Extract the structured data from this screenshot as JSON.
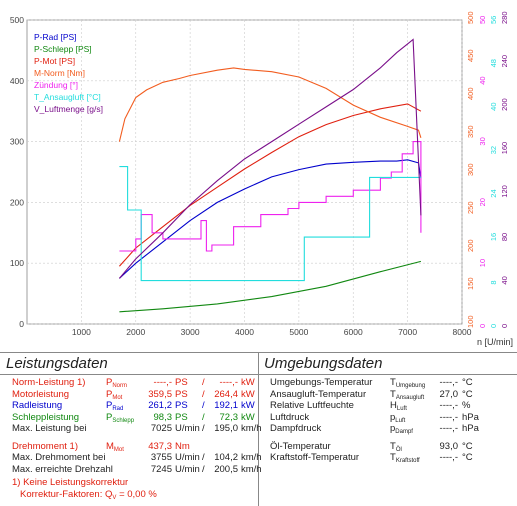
{
  "colors": {
    "p_rad": "#0000cc",
    "p_schlepp": "#118811",
    "p_mot": "#e02010",
    "m_norm": "#f25d20",
    "zuendung": "#ee22ee",
    "t_ansaug": "#22dddd",
    "v_luft": "#7a0f8a",
    "axis": "#555555"
  },
  "chart_data": {
    "type": "line",
    "xlabel": "n [U/min]",
    "x_ticks": [
      "1000",
      "2000",
      "3000",
      "4000",
      "5000",
      "6000",
      "7000",
      "8000"
    ],
    "xlim": [
      0,
      8000
    ],
    "left_axis": {
      "ticks": [
        "0",
        "100",
        "200",
        "300",
        "400",
        "500"
      ],
      "ylim": [
        0,
        500
      ]
    },
    "right_axes": [
      {
        "color": "#f25d20",
        "ticks": [
          "100",
          "150",
          "200",
          "250",
          "300",
          "350",
          "400",
          "450",
          "500"
        ],
        "ylim": [
          100,
          500
        ]
      },
      {
        "color": "#ee22ee",
        "ticks": [
          "0",
          "10",
          "20",
          "30",
          "40",
          "50"
        ],
        "ylim": [
          0,
          50
        ]
      },
      {
        "color": "#22dddd",
        "ticks": [
          "0",
          "8",
          "16",
          "24",
          "32",
          "40",
          "48",
          "56"
        ],
        "ylim": [
          0,
          56
        ]
      },
      {
        "color": "#7a0f8a",
        "ticks": [
          "0",
          "40",
          "80",
          "120",
          "160",
          "200",
          "240",
          "280"
        ],
        "ylim": [
          0,
          280
        ]
      }
    ],
    "legend": [
      {
        "label": "P-Rad [PS]",
        "color": "#0000cc"
      },
      {
        "label": "P-Schlepp [PS]",
        "color": "#118811"
      },
      {
        "label": "P-Mot [PS]",
        "color": "#e02010"
      },
      {
        "label": "M-Norm [Nm]",
        "color": "#f25d20"
      },
      {
        "label": "Zündung [°]",
        "color": "#ee22ee"
      },
      {
        "label": "T_Ansaugluft [°C]",
        "color": "#22dddd"
      },
      {
        "label": "V_Luftmenge [g/s]",
        "color": "#7a0f8a"
      }
    ],
    "series": [
      {
        "name": "P-Rad [PS]",
        "axis": "left",
        "x": [
          1700,
          2000,
          2500,
          3000,
          3500,
          4000,
          4500,
          5000,
          5500,
          6000,
          6500,
          6800,
          7000,
          7200,
          7245
        ],
        "y": [
          75,
          100,
          135,
          170,
          200,
          222,
          242,
          254,
          263,
          266,
          268,
          268,
          270,
          265,
          240
        ]
      },
      {
        "name": "P-Schlepp [PS]",
        "axis": "left",
        "x": [
          1700,
          2500,
          3500,
          4500,
          5500,
          6500,
          7245
        ],
        "y": [
          20,
          25,
          33,
          45,
          62,
          86,
          103
        ]
      },
      {
        "name": "P-Mot [PS]",
        "axis": "left",
        "x": [
          1700,
          2000,
          2500,
          3000,
          3500,
          4000,
          4500,
          5000,
          5500,
          6000,
          6500,
          7000,
          7245
        ],
        "y": [
          95,
          125,
          160,
          195,
          225,
          255,
          282,
          308,
          328,
          343,
          354,
          362,
          350
        ]
      },
      {
        "name": "M-Norm [Nm]",
        "axis": "right0",
        "x": [
          1700,
          1800,
          2000,
          2200,
          2500,
          2800,
          3000,
          3500,
          3800,
          4000,
          4500,
          5000,
          5500,
          6000,
          6500,
          7000,
          7200,
          7245
        ],
        "y": [
          340,
          370,
          398,
          408,
          418,
          423,
          427,
          434,
          437,
          435,
          432,
          425,
          410,
          388,
          372,
          360,
          355,
          345
        ]
      },
      {
        "name": "Zündung [°]",
        "axis": "right1",
        "x": [
          1700,
          2000,
          2100,
          2300,
          2400,
          2500,
          3000,
          3200,
          3300,
          3400,
          3800,
          4000,
          4200,
          4300,
          4800,
          5000,
          5500,
          6000,
          6300,
          6500,
          6700,
          6900,
          7100,
          7245
        ],
        "y": [
          12,
          14,
          18,
          15,
          15,
          14,
          14,
          17,
          12,
          13,
          16,
          16,
          16,
          18,
          19,
          20,
          21,
          22,
          22,
          24,
          25,
          28,
          30,
          15
        ]
      },
      {
        "name": "T_Ansaugluft [°C]",
        "axis": "right2",
        "x": [
          1700,
          1800,
          1850,
          2000,
          2100,
          2500,
          3000,
          3500,
          4000,
          4500,
          5000,
          5100,
          5500,
          6000,
          6300,
          6500,
          6900,
          7100,
          7245
        ],
        "y": [
          29,
          29,
          21,
          21,
          8,
          8,
          8,
          8,
          8,
          8,
          8,
          16,
          16,
          16,
          27,
          27,
          27,
          27,
          27
        ]
      },
      {
        "name": "V_Luftmenge [g/s]",
        "axis": "right3",
        "x": [
          1700,
          2000,
          2500,
          3000,
          3500,
          4000,
          4500,
          5000,
          5500,
          6000,
          6500,
          6800,
          7000,
          7100,
          7245
        ],
        "y": [
          42,
          60,
          84,
          110,
          132,
          152,
          168,
          184,
          200,
          216,
          236,
          250,
          258,
          262,
          100
        ]
      }
    ]
  },
  "left_table": {
    "title": "Leistungsdaten",
    "rows": [
      {
        "label": "Norm-Leistung",
        "mark": "1)",
        "sym": "P",
        "symsub": "Norm",
        "v1": "----,-",
        "u1": "PS",
        "sep": "/",
        "v2": "----,-",
        "u2": "kW",
        "color": "#e02010"
      },
      {
        "label": "Motorleistung",
        "mark": "",
        "sym": "P",
        "symsub": "Mot",
        "v1": "359,5",
        "u1": "PS",
        "sep": "/",
        "v2": "264,4",
        "u2": "kW",
        "color": "#e02010"
      },
      {
        "label": "Radleistung",
        "mark": "",
        "sym": "P",
        "symsub": "Rad",
        "v1": "261,2",
        "u1": "PS",
        "sep": "/",
        "v2": "192,1",
        "u2": "kW",
        "color": "#0000cc"
      },
      {
        "label": "Schleppleistung",
        "mark": "",
        "sym": "P",
        "symsub": "Schlepp",
        "v1": "98,3",
        "u1": "PS",
        "sep": "/",
        "v2": "72,3",
        "u2": "kW",
        "color": "#118811"
      },
      {
        "label": "Max. Leistung bei",
        "mark": "",
        "sym": "",
        "symsub": "",
        "v1": "7025",
        "u1": "U/min",
        "sep": "/",
        "v2": "195,0",
        "u2": "km/h",
        "color": "#222222"
      },
      {
        "label": "Drehmoment",
        "mark": "1)",
        "sym": "M",
        "symsub": "Mot",
        "v1": "437,3",
        "u1": "Nm",
        "sep": "",
        "v2": "",
        "u2": "",
        "color": "#e02010"
      },
      {
        "label": "Max. Drehmoment bei",
        "mark": "",
        "sym": "",
        "symsub": "",
        "v1": "3755",
        "u1": "U/min",
        "sep": "/",
        "v2": "104,2",
        "u2": "km/h",
        "color": "#222222"
      },
      {
        "label": "Max. erreichte Drehzahl",
        "mark": "",
        "sym": "",
        "symsub": "",
        "v1": "7245",
        "u1": "U/min",
        "sep": "/",
        "v2": "200,5",
        "u2": "km/h",
        "color": "#222222"
      }
    ],
    "footnote1": "1) Keine Leistungskorrektur",
    "footnote2": "Korrektur-Faktoren:",
    "footnote2_sym": "Q",
    "footnote2_sub": "V",
    "footnote2_val": "=    0,00 %"
  },
  "right_table": {
    "title": "Umgebungsdaten",
    "rows": [
      {
        "label": "Umgebungs-Temperatur",
        "sym": "T",
        "symsub": "Umgebung",
        "val": "----,-",
        "unit": "°C"
      },
      {
        "label": "Ansaugluft-Temperatur",
        "sym": "T",
        "symsub": "Ansaugluft",
        "val": "27,0",
        "unit": "°C"
      },
      {
        "label": "Relative Luftfeuchte",
        "sym": "H",
        "symsub": "Luft",
        "val": "----,-",
        "unit": "%"
      },
      {
        "label": "Luftdruck",
        "sym": "p",
        "symsub": "Luft",
        "val": "----,-",
        "unit": "hPa"
      },
      {
        "label": "Dampfdruck",
        "sym": "p",
        "symsub": "Dampf",
        "val": "----,-",
        "unit": "hPa"
      },
      {
        "label": "Öl-Temperatur",
        "sym": "T",
        "symsub": "Öl",
        "val": "93,0",
        "unit": "°C"
      },
      {
        "label": "Kraftstoff-Temperatur",
        "sym": "T",
        "symsub": "Kraftstoff",
        "val": "----,-",
        "unit": "°C"
      }
    ]
  }
}
